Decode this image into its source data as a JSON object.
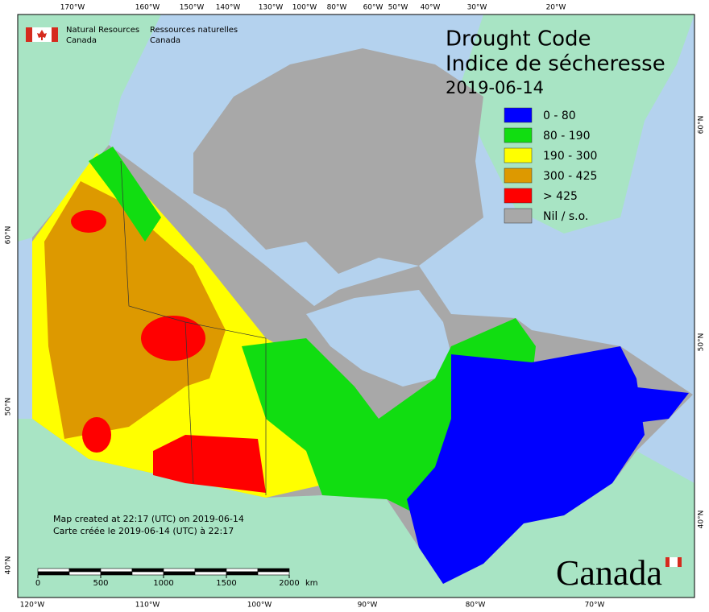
{
  "header": {
    "agency_en": [
      "Natural Resources",
      "Canada"
    ],
    "agency_fr": [
      "Ressources naturelles",
      "Canada"
    ]
  },
  "title": {
    "en": "Drought Code",
    "fr": "Indice de sécheresse",
    "date": "2019-06-14"
  },
  "legend": [
    {
      "label": "0 - 80",
      "color": "#0000ff"
    },
    {
      "label": "80 - 190",
      "color": "#11dd11"
    },
    {
      "label": "190 - 300",
      "color": "#ffff00"
    },
    {
      "label": "300 - 425",
      "color": "#dd9900"
    },
    {
      "label": "> 425",
      "color": "#ff0000"
    },
    {
      "label": "Nil / s.o.",
      "color": "#a8a8a8"
    }
  ],
  "notes": [
    "Map created at 22:17 (UTC) on 2019-06-14",
    "Carte créée le 2019-06-14 (UTC) à 22:17"
  ],
  "scale": {
    "ticks": [
      0,
      500,
      1000,
      1500,
      2000
    ],
    "unit": "km"
  },
  "graticule": {
    "top": [
      "170°W",
      "160°W",
      "150°W",
      "140°W",
      "130°W",
      "100°W",
      "80°W",
      "60°W",
      "50°W",
      "40°W",
      "30°W",
      "20°W"
    ],
    "bottom": [
      "120°W",
      "110°W",
      "100°W",
      "90°W",
      "80°W",
      "70°W"
    ],
    "left": [
      "60°N",
      "50°N",
      "40°N"
    ],
    "right": [
      "60°N",
      "50°N",
      "40°N"
    ]
  },
  "wordmark": "Canada"
}
